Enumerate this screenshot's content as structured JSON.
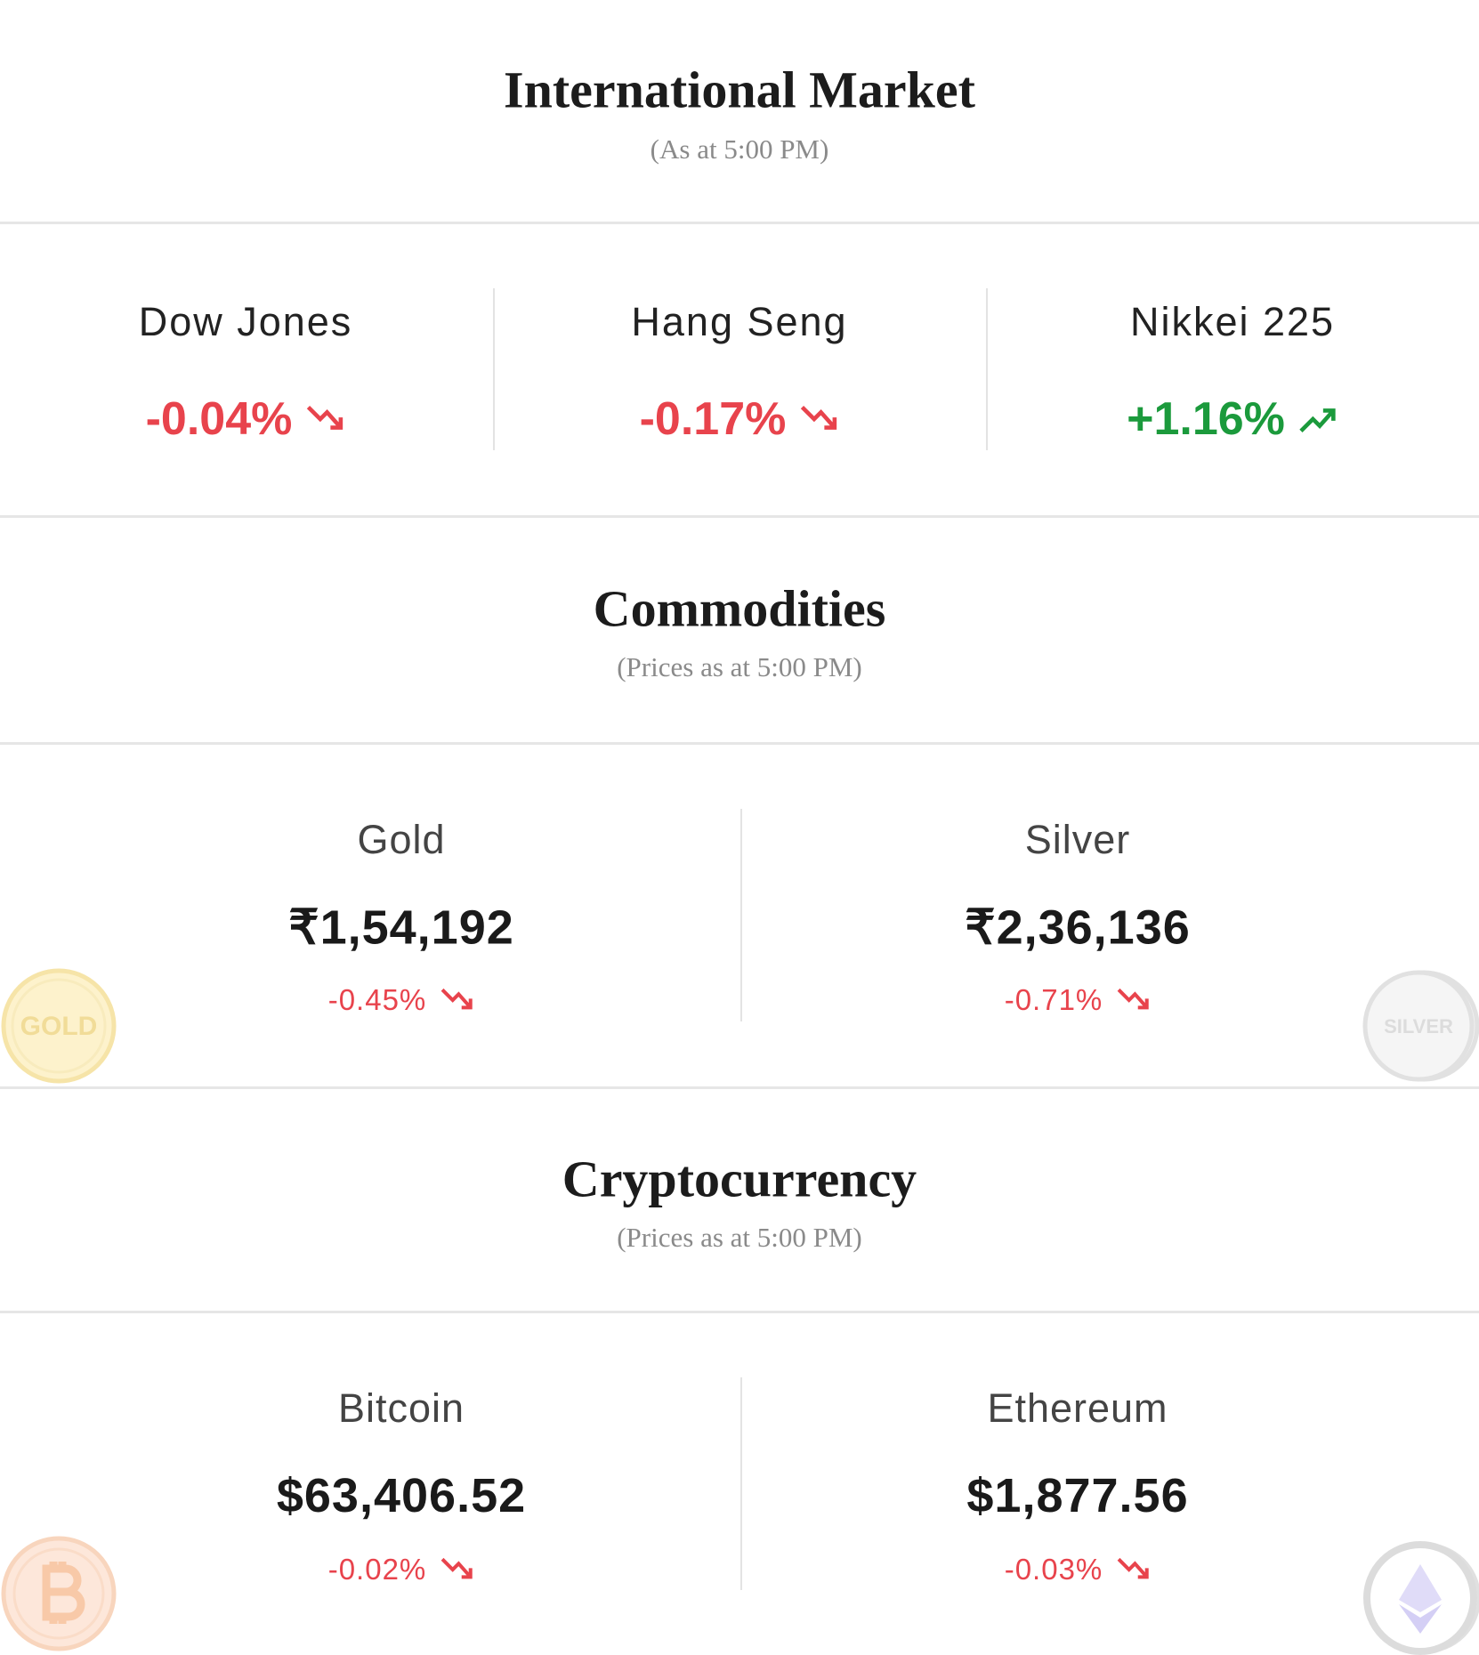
{
  "international_market": {
    "title": "International Market",
    "subtitle": "(As at 5:00 PM)",
    "items": [
      {
        "name": "Dow Jones",
        "change": "-0.04%"
      },
      {
        "name": "Hang Seng",
        "change": "-0.17%"
      },
      {
        "name": "Nikkei 225",
        "change": "+1.16%"
      }
    ]
  },
  "commodities": {
    "title": "Commodities",
    "subtitle": "(Prices as at 5:00 PM)",
    "items": [
      {
        "name": "Gold",
        "price": "₹1,54,192",
        "change": "-0.45%",
        "icon_text": "GOLD"
      },
      {
        "name": "Silver",
        "price": "₹2,36,136",
        "change": "-0.71%",
        "icon_text": "SILVER"
      }
    ]
  },
  "cryptocurrency": {
    "title": "Cryptocurrency",
    "subtitle": "(Prices as at 5:00 PM)",
    "items": [
      {
        "name": "Bitcoin",
        "price": "$63,406.52",
        "change": "-0.02%"
      },
      {
        "name": "Ethereum",
        "price": "$1,877.56",
        "change": "-0.03%"
      }
    ]
  }
}
